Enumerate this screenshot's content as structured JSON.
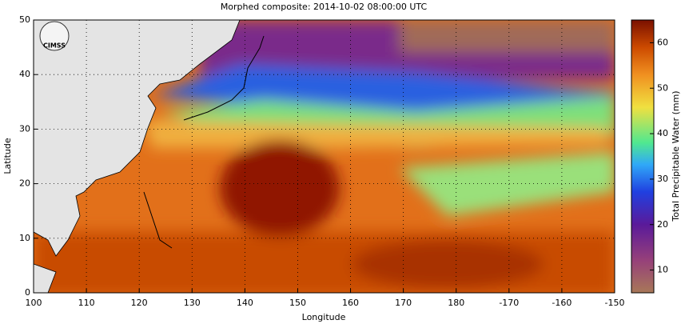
{
  "title": "Morphed composite: 2014-10-02 08:00:00 UTC",
  "logo": "CIMSS",
  "x_axis": {
    "label": "Longitude",
    "lim": [
      100,
      -150
    ],
    "ticks": [
      100,
      110,
      120,
      130,
      140,
      150,
      160,
      170,
      180,
      -170,
      -160,
      -150
    ]
  },
  "y_axis": {
    "label": "Latitude",
    "lim": [
      0,
      50
    ],
    "ticks": [
      0,
      10,
      20,
      30,
      40,
      50
    ]
  },
  "colorbar": {
    "label": "Total Precipitable Water (mm)",
    "lim": [
      5,
      65
    ],
    "ticks": [
      10,
      20,
      30,
      40,
      50,
      60
    ]
  },
  "grid": true
}
